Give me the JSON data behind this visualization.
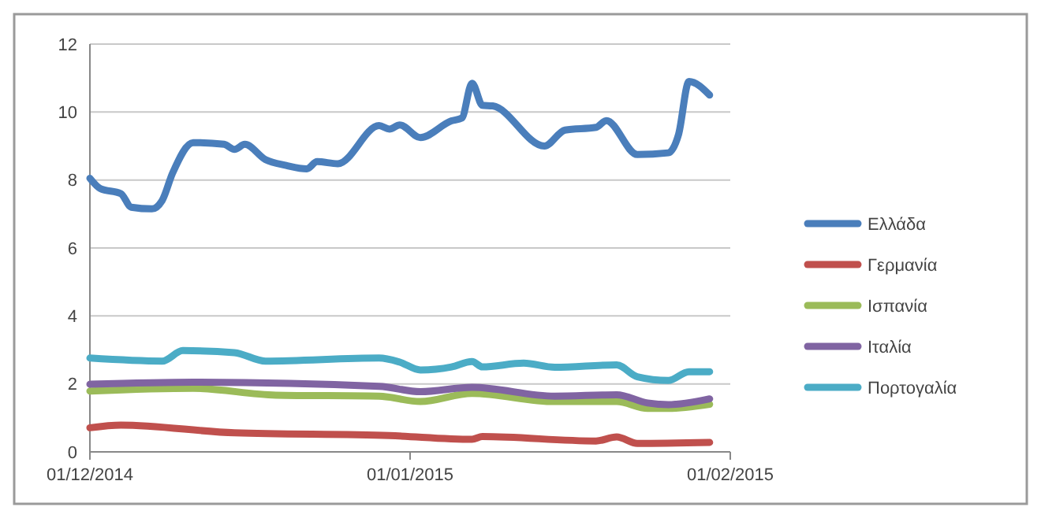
{
  "chart_data": {
    "type": "line",
    "xlim": [
      "2014-12-01",
      "2015-02-01"
    ],
    "xticks": [
      {
        "value": "2014-12-01",
        "label": "01/12/2014"
      },
      {
        "value": "2015-01-01",
        "label": "01/01/2015"
      },
      {
        "value": "2015-02-01",
        "label": "01/02/2015"
      }
    ],
    "ylim": [
      0,
      12
    ],
    "yticks": [
      0,
      2,
      4,
      6,
      8,
      10,
      12
    ],
    "grid": "y",
    "legend": "right",
    "line_style": "solid",
    "series": [
      {
        "name": "Ελλάδα",
        "color": "#4a7ebb",
        "x": [
          "2014-12-01",
          "2014-12-02",
          "2014-12-04",
          "2014-12-05",
          "2014-12-07",
          "2014-12-08",
          "2014-12-09",
          "2014-12-11",
          "2014-12-14",
          "2014-12-15",
          "2014-12-16",
          "2014-12-18",
          "2014-12-20",
          "2014-12-22",
          "2014-12-23",
          "2014-12-25",
          "2014-12-29",
          "2014-12-30",
          "2014-12-31",
          "2015-01-02",
          "2015-01-05",
          "2015-01-06",
          "2015-01-07",
          "2015-01-08",
          "2015-01-09",
          "2015-01-14",
          "2015-01-16",
          "2015-01-19",
          "2015-01-20",
          "2015-01-23",
          "2015-01-26",
          "2015-01-27",
          "2015-01-28",
          "2015-01-30"
        ],
        "values": [
          8.05,
          7.75,
          7.6,
          7.2,
          7.15,
          7.4,
          8.2,
          9.1,
          9.05,
          8.9,
          9.05,
          8.6,
          8.43,
          8.33,
          8.54,
          8.48,
          9.6,
          9.5,
          9.62,
          9.25,
          9.74,
          9.82,
          10.85,
          10.2,
          10.18,
          9.0,
          9.47,
          9.55,
          9.75,
          8.75,
          8.8,
          9.35,
          10.9,
          10.5
        ]
      },
      {
        "name": "Γερμανία",
        "color": "#c0504d",
        "x": [
          "2014-12-01",
          "2014-12-04",
          "2014-12-15",
          "2014-12-30",
          "2015-01-07",
          "2015-01-08",
          "2015-01-19",
          "2015-01-21",
          "2015-01-23",
          "2015-01-30"
        ],
        "values": [
          0.71,
          0.79,
          0.56,
          0.48,
          0.37,
          0.45,
          0.32,
          0.44,
          0.25,
          0.28
        ]
      },
      {
        "name": "Ισπανία",
        "color": "#9bbb59",
        "x": [
          "2014-12-01",
          "2014-12-11",
          "2014-12-19",
          "2014-12-29",
          "2015-01-02",
          "2015-01-07",
          "2015-01-15",
          "2015-01-21",
          "2015-01-24",
          "2015-01-26",
          "2015-01-30"
        ],
        "values": [
          1.79,
          1.87,
          1.67,
          1.64,
          1.48,
          1.72,
          1.48,
          1.48,
          1.28,
          1.28,
          1.4
        ]
      },
      {
        "name": "Ιταλία",
        "color": "#8064a2",
        "x": [
          "2014-12-01",
          "2014-12-11",
          "2014-12-29",
          "2015-01-02",
          "2015-01-07",
          "2015-01-15",
          "2015-01-21",
          "2015-01-24",
          "2015-01-26",
          "2015-01-30"
        ],
        "values": [
          1.99,
          2.05,
          1.93,
          1.77,
          1.9,
          1.64,
          1.68,
          1.44,
          1.39,
          1.56
        ]
      },
      {
        "name": "Πορτογαλία",
        "color": "#4bacc6",
        "x": [
          "2014-12-01",
          "2014-12-08",
          "2014-12-10",
          "2014-12-15",
          "2014-12-18",
          "2014-12-29",
          "2014-12-31",
          "2015-01-02",
          "2015-01-05",
          "2015-01-07",
          "2015-01-08",
          "2015-01-12",
          "2015-01-15",
          "2015-01-21",
          "2015-01-23",
          "2015-01-26",
          "2015-01-28",
          "2015-01-30"
        ],
        "values": [
          2.76,
          2.67,
          2.98,
          2.92,
          2.67,
          2.76,
          2.64,
          2.41,
          2.5,
          2.66,
          2.5,
          2.61,
          2.49,
          2.56,
          2.21,
          2.1,
          2.36,
          2.36
        ]
      }
    ]
  }
}
